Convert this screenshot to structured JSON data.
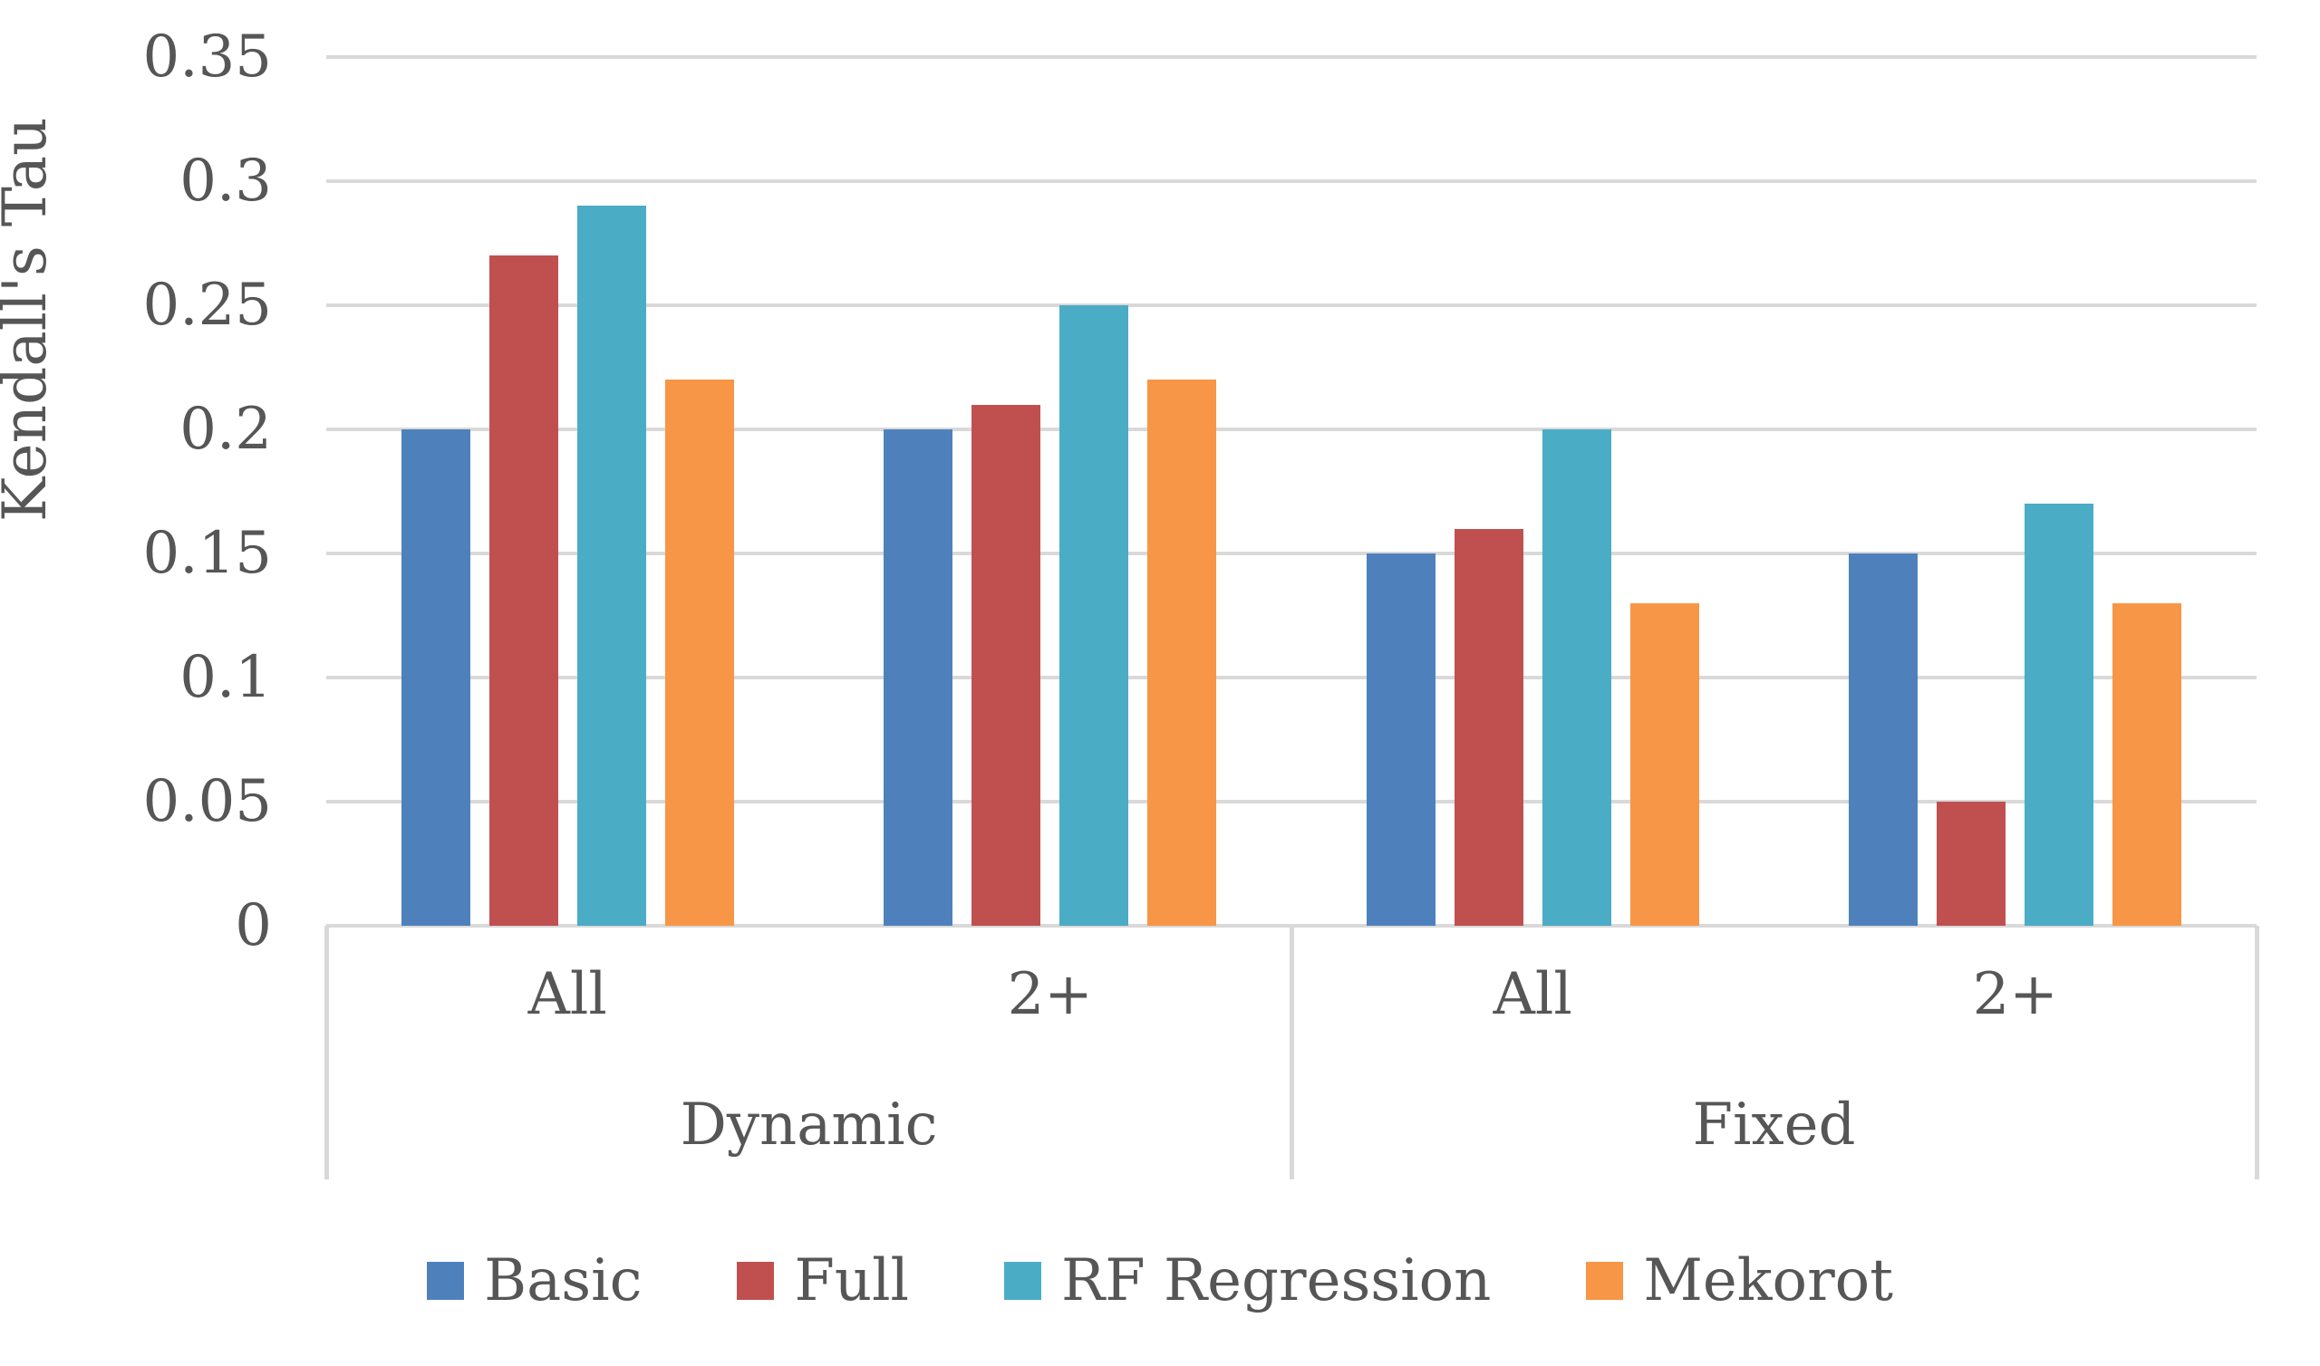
{
  "chart_data": {
    "type": "bar",
    "title": "",
    "ylabel": "Kendall's Tau",
    "xlabel": "",
    "ylim": [
      0,
      0.35
    ],
    "ytick_step": 0.05,
    "yticks": [
      "0.35",
      "0.3",
      "0.25",
      "0.2",
      "0.15",
      "0.1",
      "0.05",
      "0"
    ],
    "grid": true,
    "legend_position": "bottom",
    "groups": [
      {
        "label": "Dynamic",
        "categories": [
          "All",
          "2+"
        ]
      },
      {
        "label": "Fixed",
        "categories": [
          "All",
          "2+"
        ]
      }
    ],
    "categories": [
      "All",
      "2+",
      "All",
      "2+"
    ],
    "series": [
      {
        "name": "Basic",
        "color": "#4E81BC",
        "values": [
          0.2,
          0.2,
          0.15,
          0.15
        ]
      },
      {
        "name": "Full",
        "color": "#C05050",
        "values": [
          0.27,
          0.21,
          0.16,
          0.05
        ]
      },
      {
        "name": "RF Regression",
        "color": "#4BACC6",
        "values": [
          0.29,
          0.25,
          0.2,
          0.17
        ]
      },
      {
        "name": "Mekorot",
        "color": "#F79646",
        "values": [
          0.22,
          0.22,
          0.13,
          0.13
        ]
      }
    ],
    "colors": {
      "gridline": "#d9d9d9",
      "axis_text": "#565656"
    }
  }
}
